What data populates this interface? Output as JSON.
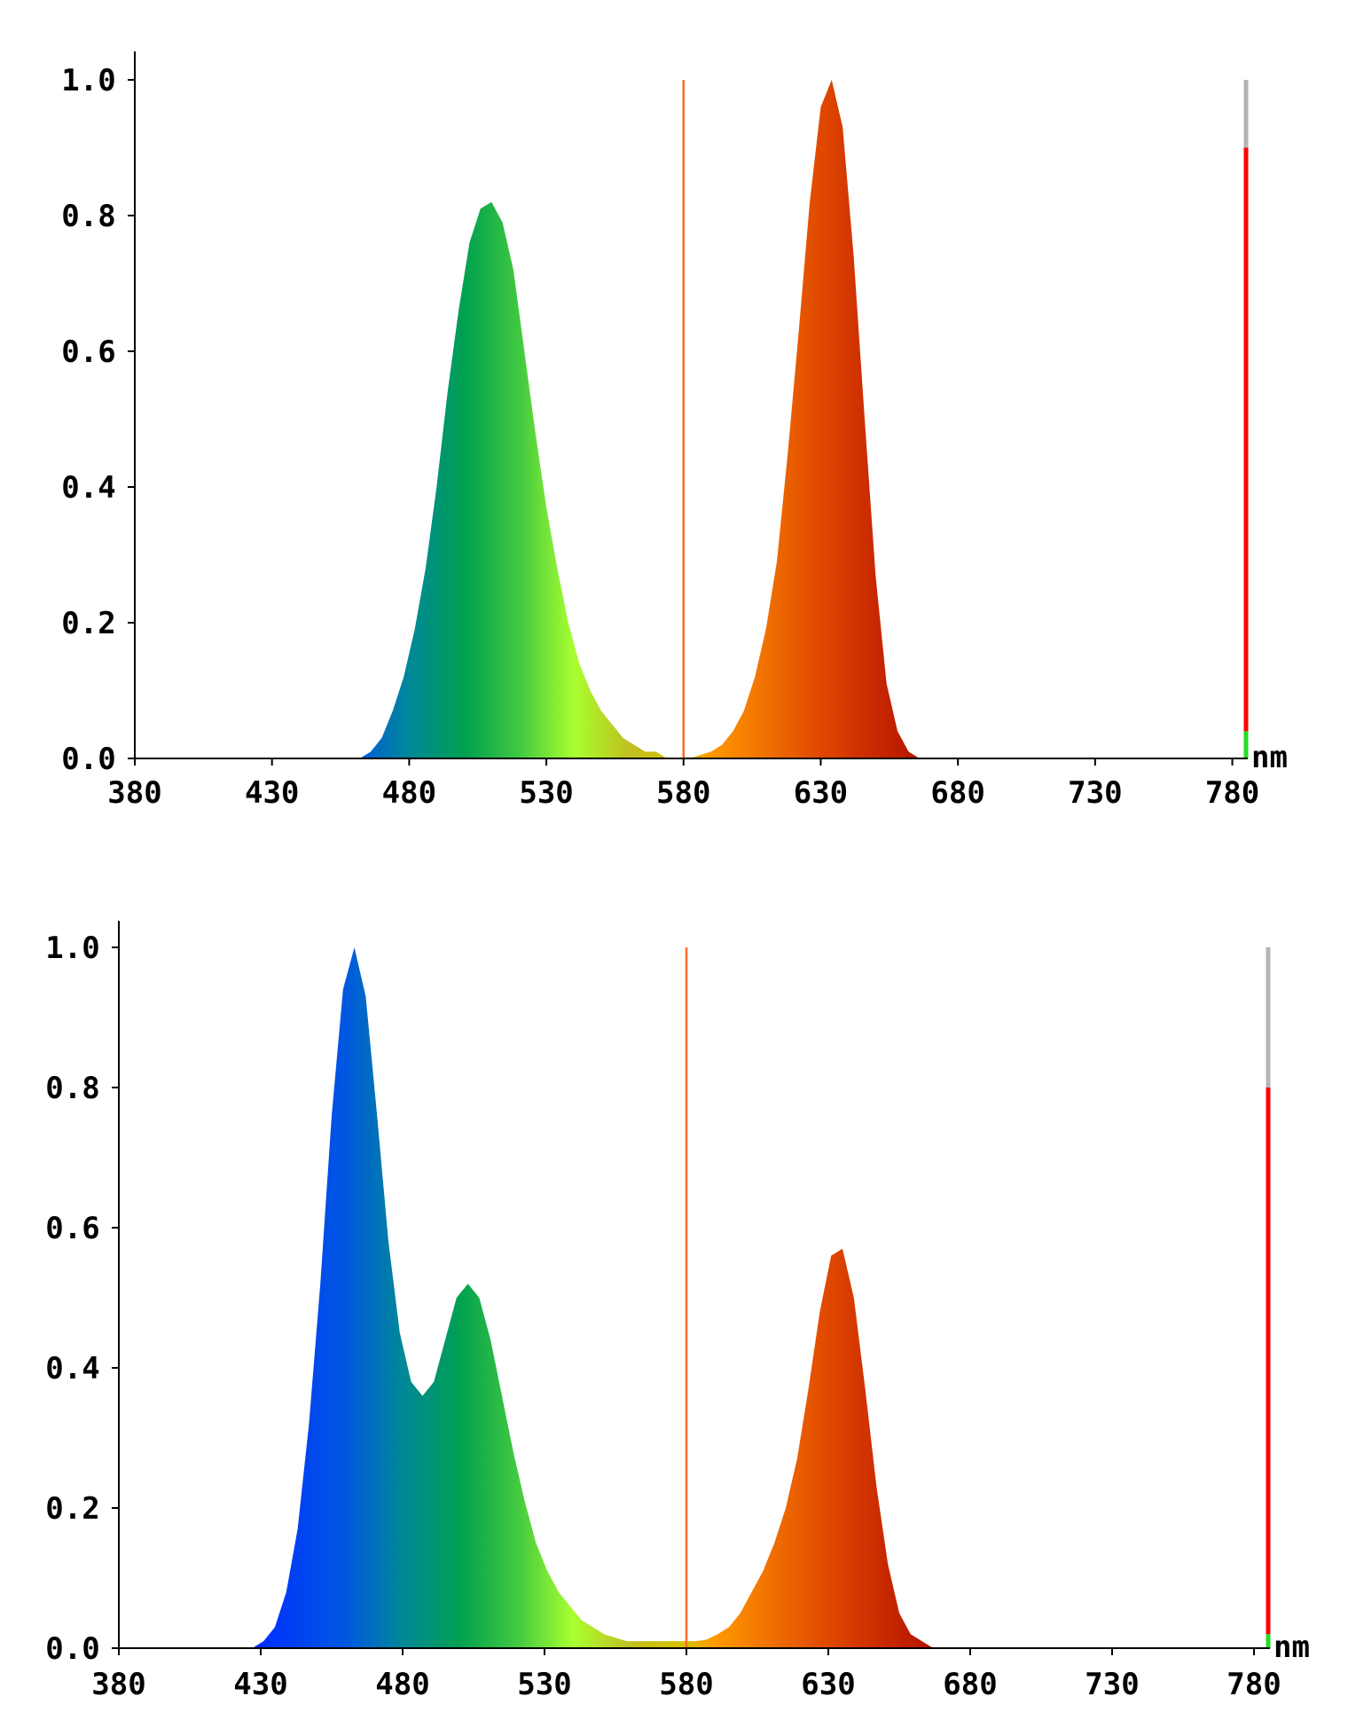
{
  "chart_data": [
    {
      "type": "area",
      "title": "",
      "xlabel": "",
      "ylabel": "",
      "x_unit": "nm",
      "xlim": [
        380,
        785
      ],
      "ylim": [
        0,
        1.0
      ],
      "x_ticks": [
        "380",
        "430",
        "480",
        "530",
        "580",
        "630",
        "680",
        "730",
        "780"
      ],
      "y_ticks": [
        "0.0",
        "0.2",
        "0.4",
        "0.6",
        "0.8",
        "1.0"
      ],
      "marker_line_x": 580,
      "marker_line_color": "#ff6a2a",
      "side_bar": {
        "x": 785,
        "gray_top": 1.0,
        "red_top": 0.9,
        "green_top": 0.04,
        "gray": "#b4b4b4",
        "red": "#ff0000",
        "green": "#22dd22"
      },
      "series": [
        {
          "x": [
            462,
            466,
            470,
            474,
            478,
            482,
            486,
            490,
            494,
            498,
            502,
            506,
            510,
            514,
            518,
            522,
            526,
            530,
            534,
            538,
            542,
            546,
            550,
            554,
            558,
            562,
            566,
            570,
            574,
            578,
            582,
            586,
            590,
            594,
            598,
            602,
            606,
            610,
            614,
            618,
            622,
            626,
            630,
            634,
            638,
            642,
            646,
            650,
            654,
            658,
            662,
            666
          ],
          "values": [
            0.0,
            0.01,
            0.03,
            0.07,
            0.12,
            0.19,
            0.28,
            0.4,
            0.54,
            0.66,
            0.76,
            0.81,
            0.82,
            0.79,
            0.72,
            0.6,
            0.48,
            0.37,
            0.28,
            0.2,
            0.14,
            0.1,
            0.07,
            0.05,
            0.03,
            0.02,
            0.01,
            0.01,
            0.0,
            0.0,
            0.0,
            0.005,
            0.01,
            0.02,
            0.04,
            0.07,
            0.12,
            0.19,
            0.29,
            0.45,
            0.63,
            0.82,
            0.96,
            1.0,
            0.93,
            0.74,
            0.5,
            0.27,
            0.11,
            0.04,
            0.01,
            0.0
          ]
        }
      ]
    },
    {
      "type": "area",
      "title": "",
      "xlabel": "",
      "ylabel": "",
      "x_unit": "nm",
      "xlim": [
        380,
        785
      ],
      "ylim": [
        0,
        1.0
      ],
      "x_ticks": [
        "380",
        "430",
        "480",
        "530",
        "580",
        "630",
        "680",
        "730",
        "780"
      ],
      "y_ticks": [
        "0.0",
        "0.2",
        "0.4",
        "0.6",
        "0.8",
        "1.0"
      ],
      "marker_line_x": 580,
      "marker_line_color": "#ff6a2a",
      "side_bar": {
        "x": 785,
        "gray_top": 1.0,
        "red_top": 0.8,
        "green_top": 0.02,
        "gray": "#b4b4b4",
        "red": "#ff0000",
        "green": "#22dd22"
      },
      "series": [
        {
          "x": [
            427,
            431,
            435,
            439,
            443,
            447,
            451,
            455,
            459,
            463,
            467,
            471,
            475,
            479,
            483,
            487,
            491,
            495,
            499,
            503,
            507,
            511,
            515,
            519,
            523,
            527,
            531,
            535,
            539,
            543,
            547,
            551,
            555,
            559,
            563,
            567,
            571,
            575,
            579,
            583,
            587,
            591,
            595,
            599,
            603,
            607,
            611,
            615,
            619,
            623,
            627,
            631,
            635,
            639,
            643,
            647,
            651,
            655,
            659,
            663,
            667
          ],
          "values": [
            0.0,
            0.01,
            0.03,
            0.08,
            0.17,
            0.32,
            0.52,
            0.76,
            0.94,
            1.0,
            0.93,
            0.76,
            0.58,
            0.45,
            0.38,
            0.36,
            0.38,
            0.44,
            0.5,
            0.52,
            0.5,
            0.44,
            0.36,
            0.28,
            0.21,
            0.15,
            0.11,
            0.08,
            0.06,
            0.04,
            0.03,
            0.02,
            0.015,
            0.01,
            0.01,
            0.01,
            0.01,
            0.01,
            0.01,
            0.01,
            0.012,
            0.02,
            0.03,
            0.05,
            0.08,
            0.11,
            0.15,
            0.2,
            0.27,
            0.37,
            0.48,
            0.56,
            0.57,
            0.5,
            0.37,
            0.23,
            0.12,
            0.05,
            0.02,
            0.01,
            0.0
          ]
        }
      ]
    }
  ]
}
